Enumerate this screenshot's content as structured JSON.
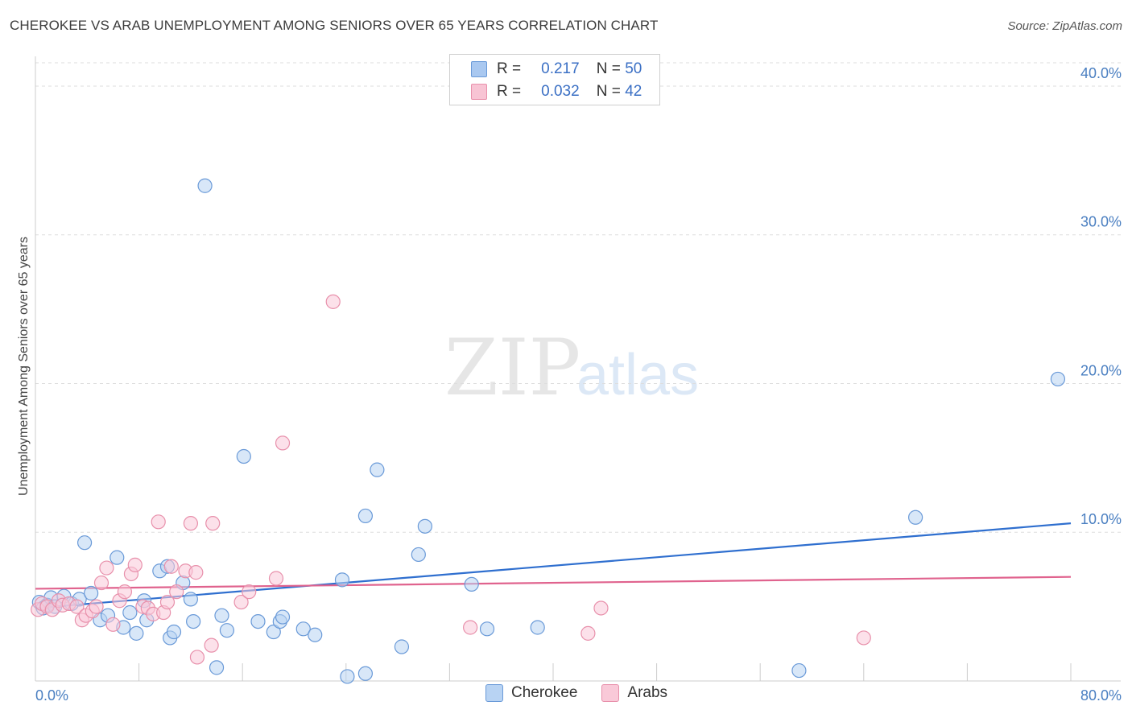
{
  "title": "CHEROKEE VS ARAB UNEMPLOYMENT AMONG SENIORS OVER 65 YEARS CORRELATION CHART",
  "source": "Source: ZipAtlas.com",
  "watermark": {
    "zip": "ZIP",
    "atlas": "atlas"
  },
  "legend": {
    "r_label": "R =",
    "n_label": "N =",
    "series": [
      {
        "r": "0.217",
        "n": "50",
        "color": "#a9c8f0",
        "border": "#6a9ad8"
      },
      {
        "r": "0.032",
        "n": "42",
        "color": "#f8c4d4",
        "border": "#e890ab"
      }
    ]
  },
  "bottom_legend": [
    {
      "name": "Cherokee",
      "color": "#b8d3f3",
      "border": "#6a9ad8"
    },
    {
      "name": "Arabs",
      "color": "#f9c9d8",
      "border": "#e890ab"
    }
  ],
  "chart_data": {
    "type": "scatter",
    "title": "CHEROKEE VS ARAB UNEMPLOYMENT AMONG SENIORS OVER 65 YEARS CORRELATION CHART",
    "xlabel": "",
    "ylabel": "Unemployment Among Seniors over 65 years",
    "xlim": [
      0,
      80
    ],
    "ylim": [
      0,
      42
    ],
    "x_tick_labels": [
      {
        "v": 0,
        "label": "0.0%"
      },
      {
        "v": 80,
        "label": "80.0%"
      }
    ],
    "y_tick_labels": [
      {
        "v": 10,
        "label": "10.0%"
      },
      {
        "v": 20,
        "label": "20.0%"
      },
      {
        "v": 30,
        "label": "30.0%"
      },
      {
        "v": 40,
        "label": "40.0%"
      }
    ],
    "series": [
      {
        "name": "Cherokee",
        "color": "#6a9ad8",
        "fill": "#b8d3f3",
        "trend": {
          "x0": 0,
          "y0": 4.9,
          "x1": 80,
          "y1": 10.6,
          "color": "#2f6fcf"
        },
        "points": [
          [
            0.3,
            5.3
          ],
          [
            0.6,
            4.9
          ],
          [
            0.9,
            5.1
          ],
          [
            1.2,
            5.6
          ],
          [
            1.5,
            5.0
          ],
          [
            2.2,
            5.7
          ],
          [
            2.8,
            5.2
          ],
          [
            3.4,
            5.5
          ],
          [
            3.8,
            9.3
          ],
          [
            4.3,
            5.9
          ],
          [
            5.0,
            4.1
          ],
          [
            5.6,
            4.4
          ],
          [
            6.3,
            8.3
          ],
          [
            6.8,
            3.6
          ],
          [
            7.3,
            4.6
          ],
          [
            7.8,
            3.2
          ],
          [
            8.4,
            5.4
          ],
          [
            8.6,
            4.1
          ],
          [
            9.6,
            7.4
          ],
          [
            10.2,
            7.7
          ],
          [
            10.4,
            2.9
          ],
          [
            10.7,
            3.3
          ],
          [
            11.4,
            6.6
          ],
          [
            12.0,
            5.5
          ],
          [
            12.2,
            4.0
          ],
          [
            13.1,
            33.3
          ],
          [
            14.0,
            0.9
          ],
          [
            14.4,
            4.4
          ],
          [
            14.8,
            3.4
          ],
          [
            16.1,
            15.1
          ],
          [
            17.2,
            4.0
          ],
          [
            18.4,
            3.3
          ],
          [
            18.9,
            4.0
          ],
          [
            19.1,
            4.3
          ],
          [
            20.7,
            3.5
          ],
          [
            21.6,
            3.1
          ],
          [
            23.7,
            6.8
          ],
          [
            24.1,
            0.3
          ],
          [
            25.5,
            0.5
          ],
          [
            25.5,
            11.1
          ],
          [
            26.4,
            14.2
          ],
          [
            28.3,
            2.3
          ],
          [
            29.6,
            8.5
          ],
          [
            30.1,
            10.4
          ],
          [
            33.7,
            6.5
          ],
          [
            34.9,
            3.5
          ],
          [
            38.8,
            3.6
          ],
          [
            59.0,
            0.7
          ],
          [
            68.0,
            11.0
          ],
          [
            79.0,
            20.3
          ]
        ]
      },
      {
        "name": "Arabs",
        "color": "#e890ab",
        "fill": "#f9c9d8",
        "trend": {
          "x0": 0,
          "y0": 6.2,
          "x1": 80,
          "y1": 7.0,
          "color": "#e0638e"
        },
        "points": [
          [
            0.2,
            4.8
          ],
          [
            0.5,
            5.2
          ],
          [
            0.9,
            5.0
          ],
          [
            1.3,
            4.8
          ],
          [
            1.8,
            5.4
          ],
          [
            2.1,
            5.1
          ],
          [
            2.6,
            5.2
          ],
          [
            3.2,
            5.0
          ],
          [
            3.6,
            4.1
          ],
          [
            3.9,
            4.4
          ],
          [
            4.4,
            4.7
          ],
          [
            4.7,
            5.0
          ],
          [
            5.1,
            6.6
          ],
          [
            5.5,
            7.6
          ],
          [
            6.0,
            3.8
          ],
          [
            6.5,
            5.4
          ],
          [
            6.9,
            6.0
          ],
          [
            7.4,
            7.2
          ],
          [
            7.7,
            7.8
          ],
          [
            8.3,
            5.0
          ],
          [
            8.7,
            4.9
          ],
          [
            9.1,
            4.5
          ],
          [
            9.5,
            10.7
          ],
          [
            9.9,
            4.6
          ],
          [
            10.2,
            5.3
          ],
          [
            10.5,
            7.7
          ],
          [
            10.9,
            6.0
          ],
          [
            11.6,
            7.4
          ],
          [
            12.0,
            10.6
          ],
          [
            12.4,
            7.3
          ],
          [
            12.5,
            1.6
          ],
          [
            13.6,
            2.4
          ],
          [
            13.7,
            10.6
          ],
          [
            15.9,
            5.3
          ],
          [
            16.5,
            6.0
          ],
          [
            18.6,
            6.9
          ],
          [
            19.1,
            16.0
          ],
          [
            23.0,
            25.5
          ],
          [
            33.6,
            3.6
          ],
          [
            42.7,
            3.2
          ],
          [
            43.7,
            4.9
          ],
          [
            64.0,
            2.9
          ]
        ]
      }
    ]
  }
}
